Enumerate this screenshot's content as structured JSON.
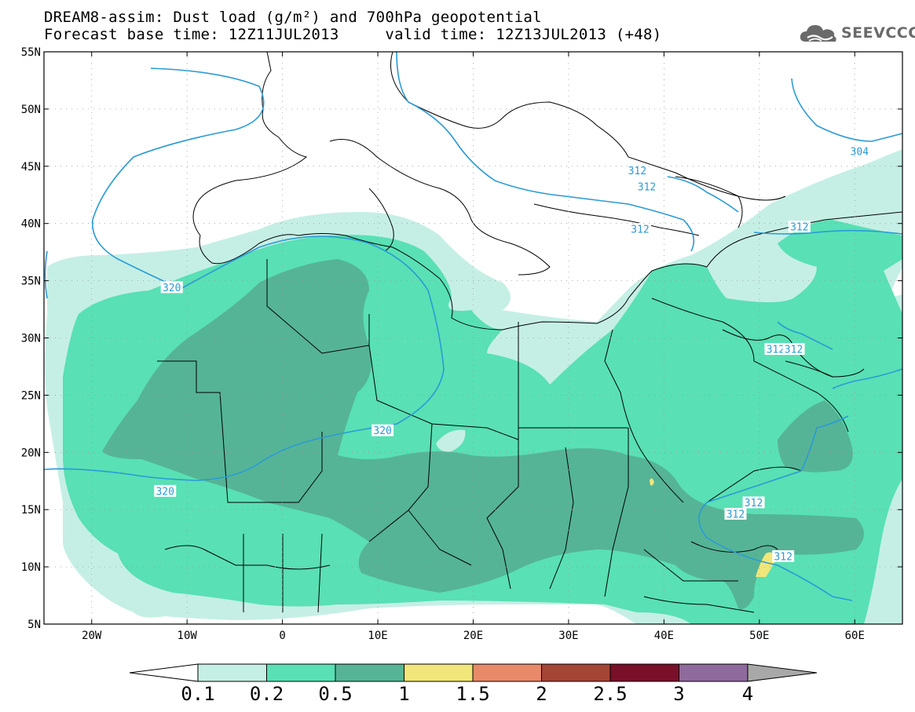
{
  "header": {
    "title_line_1": "DREAM8-assim: Dust load (g/m²) and 700hPa geopotential",
    "title_line_2": "Forecast base time: 12Z11JUL2013     valid time: 12Z13JUL2013 (+48)"
  },
  "logo": {
    "text": "SEEVCCC",
    "icon": "cloud-logo-icon",
    "color": "#6a6a6a"
  },
  "map": {
    "lon_range": [
      -25,
      65
    ],
    "lat_range": [
      5,
      55
    ],
    "lon_ticks": [
      {
        "value": -20,
        "label": "20W"
      },
      {
        "value": -10,
        "label": "10W"
      },
      {
        "value": 0,
        "label": "0"
      },
      {
        "value": 10,
        "label": "10E"
      },
      {
        "value": 20,
        "label": "20E"
      },
      {
        "value": 30,
        "label": "30E"
      },
      {
        "value": 40,
        "label": "40E"
      },
      {
        "value": 50,
        "label": "50E"
      },
      {
        "value": 60,
        "label": "60E"
      }
    ],
    "lat_ticks": [
      {
        "value": 55,
        "label": "55N"
      },
      {
        "value": 50,
        "label": "50N"
      },
      {
        "value": 45,
        "label": "45N"
      },
      {
        "value": 40,
        "label": "40N"
      },
      {
        "value": 35,
        "label": "35N"
      },
      {
        "value": 30,
        "label": "30N"
      },
      {
        "value": 25,
        "label": "25N"
      },
      {
        "value": 20,
        "label": "20N"
      },
      {
        "value": 15,
        "label": "15N"
      },
      {
        "value": 10,
        "label": "10N"
      },
      {
        "value": 5,
        "label": "5N"
      }
    ],
    "contour_labels": [
      {
        "text": "304",
        "lon": 60.5,
        "lat": 46.3
      },
      {
        "text": "312",
        "lon": 37.2,
        "lat": 44.6
      },
      {
        "text": "312",
        "lon": 38.2,
        "lat": 43.2
      },
      {
        "text": "312",
        "lon": 37.5,
        "lat": 39.5
      },
      {
        "text": "312",
        "lon": 54.2,
        "lat": 39.7
      },
      {
        "text": "312",
        "lon": 51.7,
        "lat": 29.0
      },
      {
        "text": "312",
        "lon": 53.6,
        "lat": 29.0
      },
      {
        "text": "312",
        "lon": 49.4,
        "lat": 15.6
      },
      {
        "text": "312",
        "lon": 47.5,
        "lat": 14.6
      },
      {
        "text": "312",
        "lon": 52.5,
        "lat": 10.9
      },
      {
        "text": "320",
        "lon": -11.6,
        "lat": 34.4
      },
      {
        "text": "320",
        "lon": 10.5,
        "lat": 21.9
      },
      {
        "text": "320",
        "lon": -12.3,
        "lat": 16.6
      }
    ],
    "colors": {
      "ocean": "#ffffff",
      "level_01": "#c5efe5",
      "level_02": "#59e0b4",
      "level_05": "#55b496",
      "level_1": "#f0e67a",
      "contour": "#2a9bd6",
      "border": "#000000"
    }
  },
  "colorbar": {
    "labels": [
      "0.1",
      "0.2",
      "0.5",
      "1",
      "1.5",
      "2",
      "2.5",
      "3",
      "4"
    ],
    "colors": [
      "#c5efe5",
      "#59e0b4",
      "#55b496",
      "#f0e67a",
      "#e8896a",
      "#a54536",
      "#7a0f2a",
      "#8f6a9d"
    ],
    "left_arrow_color": "#ffffff",
    "right_arrow_color": "#a8a8a8"
  }
}
